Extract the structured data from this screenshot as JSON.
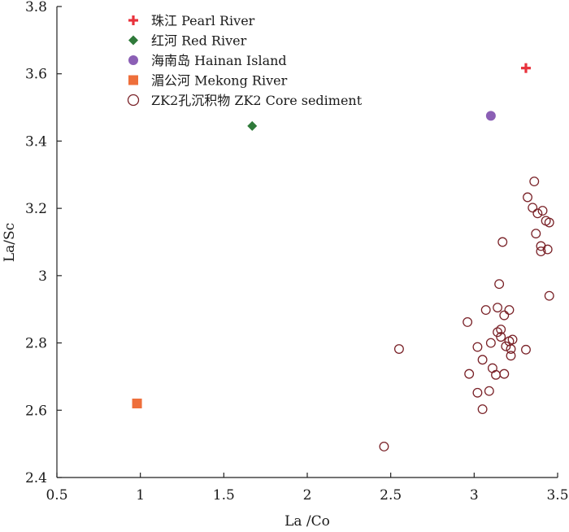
{
  "chart_data": {
    "type": "scatter",
    "xlabel": "La /Co",
    "ylabel": "La/Sc",
    "xlim": [
      0.5,
      3.5
    ],
    "ylim": [
      2.4,
      3.8
    ],
    "xticks": [
      0.5,
      1,
      1.5,
      2,
      2.5,
      3,
      3.5
    ],
    "xtick_labels": [
      "0.5",
      "1",
      "1.5",
      "2",
      "2.5",
      "3",
      "3.5"
    ],
    "yticks": [
      2.4,
      2.6,
      2.8,
      3.0,
      3.2,
      3.4,
      3.6,
      3.8
    ],
    "ytick_labels": [
      "2.4",
      "2.6",
      "2.8",
      "3",
      "3.2",
      "3.4",
      "3.6",
      "3.8"
    ],
    "grid": false,
    "legend_position": "top-left",
    "series": [
      {
        "name": "珠江 Pearl River",
        "marker": "plus",
        "color": "#e8323c",
        "points": [
          [
            3.31,
            3.617
          ]
        ]
      },
      {
        "name": "红河 Red River",
        "marker": "diamond",
        "color": "#2f7a3a",
        "points": [
          [
            1.67,
            3.445
          ]
        ]
      },
      {
        "name": "海南岛 Hainan Island",
        "marker": "filled-circle",
        "color": "#8b5fb5",
        "points": [
          [
            3.1,
            3.475
          ]
        ]
      },
      {
        "name": "湄公河 Mekong River",
        "marker": "square",
        "color": "#ee6f3b",
        "points": [
          [
            0.98,
            2.62
          ]
        ]
      },
      {
        "name": "ZK2孔沉积物 ZK2 Core sediment",
        "marker": "open-circle",
        "color": "#7a2228",
        "points": [
          [
            2.46,
            2.492
          ],
          [
            2.55,
            2.782
          ],
          [
            2.96,
            2.862
          ],
          [
            2.97,
            2.708
          ],
          [
            3.02,
            2.652
          ],
          [
            3.02,
            2.788
          ],
          [
            3.05,
            2.75
          ],
          [
            3.05,
            2.603
          ],
          [
            3.07,
            2.898
          ],
          [
            3.09,
            2.657
          ],
          [
            3.1,
            2.8
          ],
          [
            3.11,
            2.725
          ],
          [
            3.13,
            2.705
          ],
          [
            3.14,
            2.832
          ],
          [
            3.14,
            2.905
          ],
          [
            3.15,
            2.975
          ],
          [
            3.16,
            2.818
          ],
          [
            3.16,
            2.84
          ],
          [
            3.17,
            3.1
          ],
          [
            3.18,
            2.708
          ],
          [
            3.18,
            2.882
          ],
          [
            3.19,
            2.79
          ],
          [
            3.21,
            2.805
          ],
          [
            3.21,
            2.898
          ],
          [
            3.22,
            2.762
          ],
          [
            3.22,
            2.782
          ],
          [
            3.23,
            2.81
          ],
          [
            3.31,
            2.78
          ],
          [
            3.32,
            3.233
          ],
          [
            3.35,
            3.202
          ],
          [
            3.36,
            3.28
          ],
          [
            3.37,
            3.125
          ],
          [
            3.38,
            3.185
          ],
          [
            3.4,
            3.088
          ],
          [
            3.4,
            3.072
          ],
          [
            3.41,
            3.193
          ],
          [
            3.43,
            3.163
          ],
          [
            3.44,
            3.078
          ],
          [
            3.45,
            3.158
          ],
          [
            3.45,
            2.94
          ]
        ]
      }
    ]
  }
}
